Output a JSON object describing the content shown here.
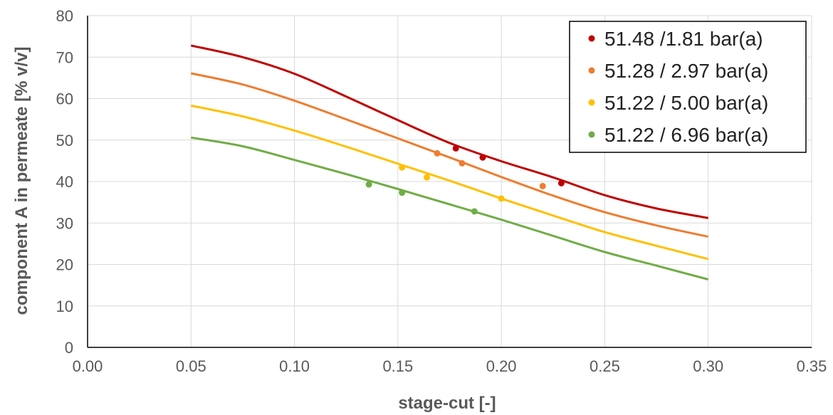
{
  "chart_data": {
    "type": "line",
    "title": "",
    "xlabel": "stage-cut [-]",
    "ylabel": "component A in permeate [% v/v]",
    "xlim": [
      0,
      0.35
    ],
    "ylim": [
      0,
      80
    ],
    "x_ticks": [
      "0.00",
      "0.05",
      "0.10",
      "0.15",
      "0.20",
      "0.25",
      "0.30",
      "0.35"
    ],
    "y_ticks": [
      "0",
      "10",
      "20",
      "30",
      "40",
      "50",
      "60",
      "70",
      "80"
    ],
    "grid": "horizontal and vertical",
    "legend_position": "top-right",
    "series": [
      {
        "name": "51.48  /1.81 bar(a)",
        "color": "#C00000",
        "line_x": [
          0.05,
          0.075,
          0.1,
          0.125,
          0.15,
          0.175,
          0.2,
          0.225,
          0.25,
          0.275,
          0.3
        ],
        "line_y": [
          72.8,
          70.0,
          66.0,
          60.5,
          54.8,
          49.3,
          44.9,
          41.0,
          36.7,
          33.5,
          31.2
        ],
        "points_x": [
          0.178,
          0.191,
          0.229
        ],
        "points_y": [
          48.0,
          45.8,
          39.6
        ]
      },
      {
        "name": "51.28 / 2.97 bar(a)",
        "color": "#ED7D31",
        "line_x": [
          0.05,
          0.075,
          0.1,
          0.125,
          0.15,
          0.175,
          0.2,
          0.225,
          0.25,
          0.275,
          0.3
        ],
        "line_y": [
          66.1,
          63.4,
          59.5,
          55.0,
          50.4,
          45.8,
          41.1,
          36.6,
          32.6,
          29.4,
          26.7
        ],
        "points_x": [
          0.169,
          0.181,
          0.22
        ],
        "points_y": [
          46.8,
          44.4,
          38.9
        ]
      },
      {
        "name": "51.22 / 5.00 bar(a)",
        "color": "#FFC000",
        "line_x": [
          0.05,
          0.075,
          0.1,
          0.125,
          0.15,
          0.175,
          0.2,
          0.225,
          0.25,
          0.275,
          0.3
        ],
        "line_y": [
          58.3,
          55.7,
          52.3,
          48.4,
          44.3,
          40.2,
          35.9,
          31.8,
          27.8,
          24.5,
          21.3
        ],
        "points_x": [
          0.152,
          0.164,
          0.2
        ],
        "points_y": [
          43.4,
          41.0,
          35.9
        ]
      },
      {
        "name": "51.22 / 6.96 bar(a)",
        "color": "#70AD47",
        "line_x": [
          0.05,
          0.075,
          0.1,
          0.125,
          0.15,
          0.175,
          0.2,
          0.225,
          0.25,
          0.275,
          0.3
        ],
        "line_y": [
          50.6,
          48.5,
          45.2,
          41.8,
          38.2,
          34.5,
          30.8,
          26.9,
          23.0,
          19.7,
          16.4
        ],
        "points_x": [
          0.136,
          0.152,
          0.187
        ],
        "points_y": [
          39.3,
          37.3,
          32.8
        ]
      }
    ]
  }
}
